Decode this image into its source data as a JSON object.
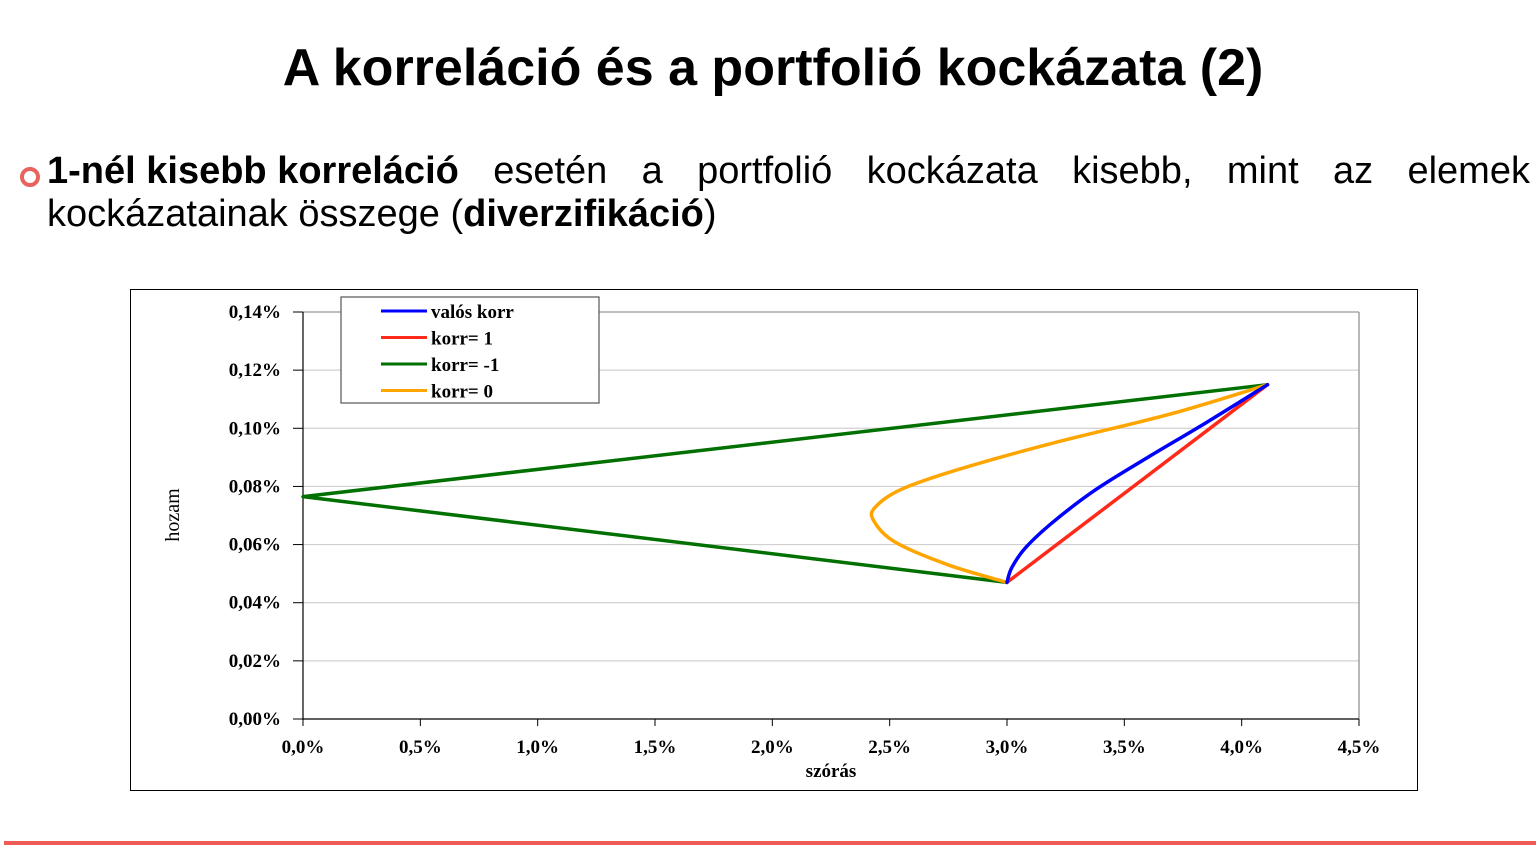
{
  "slide": {
    "title": "A korreláció és a portfolió kockázata (2)",
    "bullet": {
      "icon": "hollow-circle-bullet",
      "bold_lead": "1-nél kisebb korreláció",
      "words_line1": [
        "esetén",
        "a",
        "portfolió",
        "kockázata",
        "kisebb,",
        "mint",
        "az",
        "elemek"
      ],
      "line2_prefix": "kockázatainak összege (",
      "line2_bold": "diverzifikáció",
      "line2_suffix": ")"
    },
    "colors": {
      "bullet_accent": "#e8625e",
      "footer_bar": "#f15b55"
    }
  },
  "chart_data": {
    "type": "line",
    "title": "",
    "xlabel": "szórás",
    "ylabel": "hozam",
    "xlim": [
      0.0,
      4.5
    ],
    "ylim": [
      0.0,
      0.14
    ],
    "x_unit": "%",
    "y_unit": "%",
    "x_ticks": [
      "0,0%",
      "0,5%",
      "1,0%",
      "1,5%",
      "2,0%",
      "2,5%",
      "3,0%",
      "3,5%",
      "4,0%",
      "4,5%"
    ],
    "y_ticks": [
      "0,00%",
      "0,02%",
      "0,04%",
      "0,06%",
      "0,08%",
      "0,10%",
      "0,12%",
      "0,14%"
    ],
    "grid": "horizontal",
    "legend_position": "top-left-inside",
    "series": [
      {
        "name": "valós korr",
        "color": "#0000ff",
        "points": [
          [
            3.0,
            0.047
          ],
          [
            3.02,
            0.052
          ],
          [
            3.08,
            0.059
          ],
          [
            3.2,
            0.068
          ],
          [
            3.38,
            0.079
          ],
          [
            3.6,
            0.09
          ],
          [
            3.85,
            0.102
          ],
          [
            4.11,
            0.115
          ]
        ]
      },
      {
        "name": "korr= 1",
        "color": "#ff2a1a",
        "points": [
          [
            3.0,
            0.047
          ],
          [
            4.11,
            0.115
          ]
        ]
      },
      {
        "name": "korr= -1",
        "color": "#007000",
        "points": [
          [
            3.0,
            0.047
          ],
          [
            0.0,
            0.0765
          ],
          [
            4.11,
            0.115
          ]
        ]
      },
      {
        "name": "korr= 0",
        "color": "#ffa500",
        "points": [
          [
            3.0,
            0.047
          ],
          [
            2.75,
            0.053
          ],
          [
            2.52,
            0.061
          ],
          [
            2.43,
            0.0685
          ],
          [
            2.44,
            0.073
          ],
          [
            2.55,
            0.079
          ],
          [
            2.8,
            0.086
          ],
          [
            3.2,
            0.095
          ],
          [
            3.7,
            0.105
          ],
          [
            4.11,
            0.115
          ]
        ]
      }
    ]
  }
}
